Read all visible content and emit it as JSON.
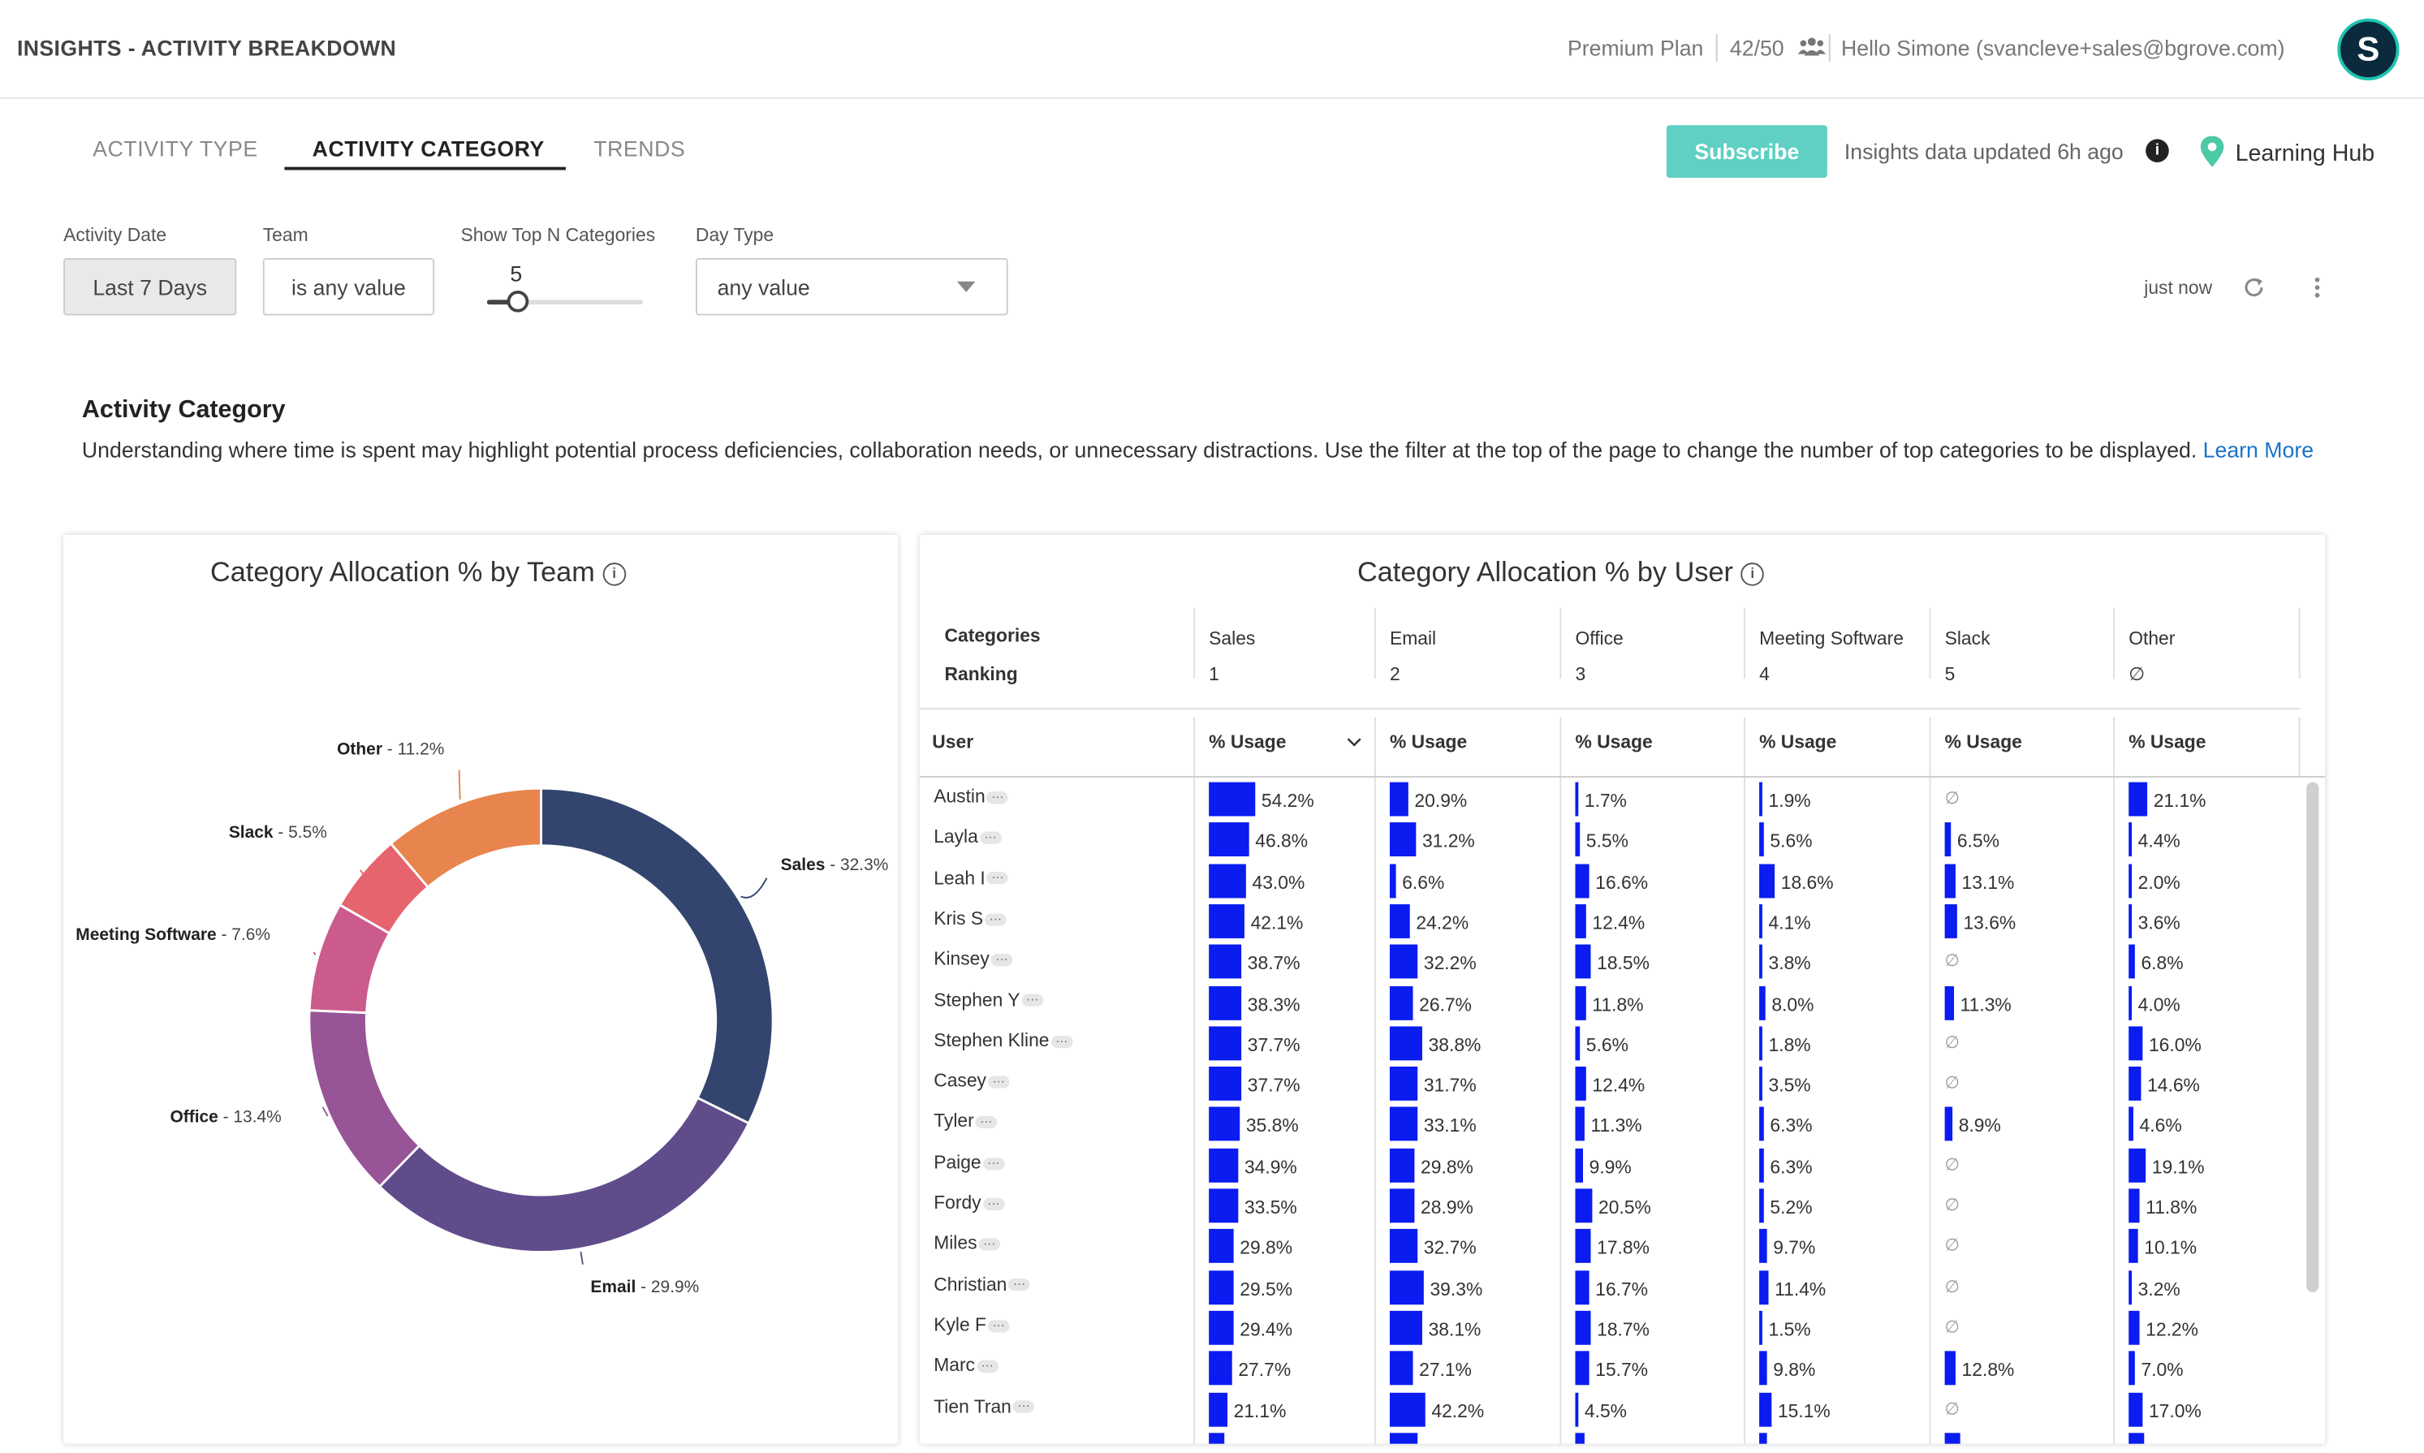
{
  "header": {
    "title": "INSIGHTS - ACTIVITY BREAKDOWN",
    "plan": "Premium Plan",
    "seats": "42/50",
    "greeting": "Hello Simone (svancleve+sales@bgrove.com)",
    "avatar_initial": "S"
  },
  "tabs": [
    {
      "label": "ACTIVITY TYPE",
      "active": false
    },
    {
      "label": "ACTIVITY CATEGORY",
      "active": true
    },
    {
      "label": "TRENDS",
      "active": false
    }
  ],
  "toolbar": {
    "subscribe_label": "Subscribe",
    "updated_text": "Insights data updated 6h ago",
    "learning_hub": "Learning Hub",
    "refresh_time": "just now"
  },
  "filters": {
    "activity_date": {
      "label": "Activity Date",
      "value": "Last 7 Days"
    },
    "team": {
      "label": "Team",
      "value": "is any value"
    },
    "top_n": {
      "label": "Show Top N Categories",
      "value": "5"
    },
    "day_type": {
      "label": "Day Type",
      "value": "any value"
    }
  },
  "section": {
    "title": "Activity Category",
    "description": "Understanding where time is spent may highlight potential process deficiencies, collaboration needs, or unnecessary distractions. Use the filter at the top of the page to change the number of top categories to be displayed.",
    "learn_more": "Learn More"
  },
  "donut": {
    "title": "Category Allocation % by Team"
  },
  "chart_data": {
    "type": "pie",
    "title": "Category Allocation % by Team",
    "slices": [
      {
        "name": "Sales",
        "value": 32.3,
        "label": "Sales",
        "pct": " - 32.3%",
        "color": "#33456f"
      },
      {
        "name": "Email",
        "value": 29.9,
        "label": "Email",
        "pct": " - 29.9%",
        "color": "#604c8b"
      },
      {
        "name": "Office",
        "value": 13.4,
        "label": "Office",
        "pct": " - 13.4%",
        "color": "#975497"
      },
      {
        "name": "Meeting Software",
        "value": 7.6,
        "label": "Meeting Software",
        "pct": " - 7.6%",
        "color": "#cc5b8d"
      },
      {
        "name": "Slack",
        "value": 5.5,
        "label": "Slack",
        "pct": " - 5.5%",
        "color": "#e5646e"
      },
      {
        "name": "Other",
        "value": 11.2,
        "label": "Other",
        "pct": " - 11.2%",
        "color": "#e8844d"
      }
    ]
  },
  "table": {
    "title": "Category Allocation % by User",
    "categories_label": "Categories",
    "ranking_label": "Ranking",
    "user_label": "User",
    "usage_label": "% Usage",
    "null_symbol": "∅",
    "ellipsis": "···",
    "columns": [
      {
        "name": "Sales",
        "rank": "1"
      },
      {
        "name": "Email",
        "rank": "2"
      },
      {
        "name": "Office",
        "rank": "3"
      },
      {
        "name": "Meeting Software",
        "rank": "4"
      },
      {
        "name": "Slack",
        "rank": "5"
      },
      {
        "name": "Other",
        "rank": "∅"
      }
    ],
    "rows": [
      {
        "user": "Austin",
        "values": [
          54.2,
          20.9,
          1.7,
          1.9,
          null,
          21.1
        ]
      },
      {
        "user": "Layla",
        "values": [
          46.8,
          31.2,
          5.5,
          5.6,
          6.5,
          4.4
        ]
      },
      {
        "user": "Leah I",
        "values": [
          43.0,
          6.6,
          16.6,
          18.6,
          13.1,
          2.0
        ]
      },
      {
        "user": "Kris S",
        "values": [
          42.1,
          24.2,
          12.4,
          4.1,
          13.6,
          3.6
        ]
      },
      {
        "user": "Kinsey",
        "values": [
          38.7,
          32.2,
          18.5,
          3.8,
          null,
          6.8
        ]
      },
      {
        "user": "Stephen Y",
        "values": [
          38.3,
          26.7,
          11.8,
          8.0,
          11.3,
          4.0
        ]
      },
      {
        "user": "Stephen Kline",
        "values": [
          37.7,
          38.8,
          5.6,
          1.8,
          null,
          16.0
        ]
      },
      {
        "user": "Casey",
        "values": [
          37.7,
          31.7,
          12.4,
          3.5,
          null,
          14.6
        ]
      },
      {
        "user": "Tyler",
        "values": [
          35.8,
          33.1,
          11.3,
          6.3,
          8.9,
          4.6
        ]
      },
      {
        "user": "Paige",
        "values": [
          34.9,
          29.8,
          9.9,
          6.3,
          null,
          19.1
        ]
      },
      {
        "user": "Fordy",
        "values": [
          33.5,
          28.9,
          20.5,
          5.2,
          null,
          11.8
        ]
      },
      {
        "user": "Miles",
        "values": [
          29.8,
          32.7,
          17.8,
          9.7,
          null,
          10.1
        ]
      },
      {
        "user": "Christian",
        "values": [
          29.5,
          39.3,
          16.7,
          11.4,
          null,
          3.2
        ]
      },
      {
        "user": "Kyle F",
        "values": [
          29.4,
          38.1,
          18.7,
          1.5,
          null,
          12.2
        ]
      },
      {
        "user": "Marc",
        "values": [
          27.7,
          27.1,
          15.7,
          9.8,
          12.8,
          7.0
        ]
      },
      {
        "user": "Tien Tran",
        "values": [
          21.1,
          42.2,
          4.5,
          15.1,
          null,
          17.0
        ]
      }
    ]
  }
}
